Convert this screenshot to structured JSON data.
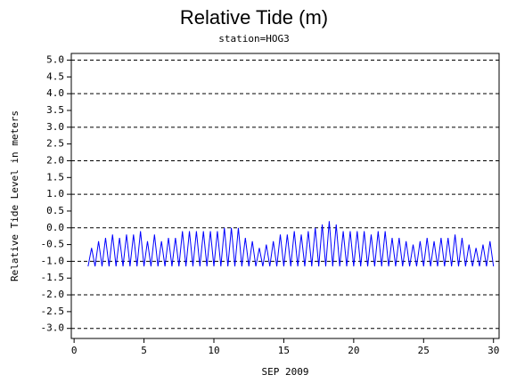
{
  "chart_data": {
    "type": "line",
    "title": "Relative Tide (m)",
    "subtitle": "station=HOG3",
    "xlabel": "SEP 2009",
    "ylabel": "Relative Tide Level in meters",
    "xlim": [
      -0.2,
      30.4
    ],
    "ylim": [
      -3.3,
      5.2
    ],
    "xticks": [
      0,
      5,
      10,
      15,
      20,
      25,
      30
    ],
    "yticks": [
      {
        "value": 5,
        "label": "5.0"
      },
      {
        "value": 4.5,
        "label": "4.5"
      },
      {
        "value": 4,
        "label": "4.0"
      },
      {
        "value": 3.5,
        "label": "3.5"
      },
      {
        "value": 3,
        "label": "3.0"
      },
      {
        "value": 2.5,
        "label": "2.5"
      },
      {
        "value": 2,
        "label": "2.0"
      },
      {
        "value": 1.5,
        "label": "1.5"
      },
      {
        "value": 1,
        "label": "1.0"
      },
      {
        "value": 0.5,
        "label": "0.5"
      },
      {
        "value": 0,
        "label": "0.0"
      },
      {
        "value": -0.5,
        "label": "-0.5"
      },
      {
        "value": -1,
        "label": "-1.0"
      },
      {
        "value": -1.5,
        "label": "-1.5"
      },
      {
        "value": -2,
        "label": "-2.0"
      },
      {
        "value": -2.5,
        "label": "-2.5"
      },
      {
        "value": -3,
        "label": "-3.0"
      }
    ],
    "grid": true,
    "x": [
      1,
      1.25,
      1.5,
      1.75,
      2,
      2.25,
      2.5,
      2.75,
      3,
      3.25,
      3.5,
      3.75,
      4,
      4.25,
      4.5,
      4.75,
      5,
      5.25,
      5.5,
      5.75,
      6,
      6.25,
      6.5,
      6.75,
      7,
      7.25,
      7.5,
      7.75,
      8,
      8.25,
      8.5,
      8.75,
      9,
      9.25,
      9.5,
      9.75,
      10,
      10.25,
      10.5,
      10.75,
      11,
      11.25,
      11.5,
      11.75,
      12,
      12.25,
      12.5,
      12.75,
      13,
      13.25,
      13.5,
      13.75,
      14,
      14.25,
      14.5,
      14.75,
      15,
      15.25,
      15.5,
      15.75,
      16,
      16.25,
      16.5,
      16.75,
      17,
      17.25,
      17.5,
      17.75,
      18,
      18.25,
      18.5,
      18.75,
      19,
      19.25,
      19.5,
      19.75,
      20,
      20.25,
      20.5,
      20.75,
      21,
      21.25,
      21.5,
      21.75,
      22,
      22.25,
      22.5,
      22.75,
      23,
      23.25,
      23.5,
      23.75,
      24,
      24.25,
      24.5,
      24.75,
      25,
      25.25,
      25.5,
      25.75,
      26,
      26.25,
      26.5,
      26.75,
      27,
      27.25,
      27.5,
      27.75,
      28,
      28.25,
      28.5,
      28.75,
      29,
      29.25,
      29.5,
      29.75,
      30
    ],
    "series": [
      {
        "name": "tide",
        "color": "#0000ff",
        "values": [
          -1.15,
          -0.6,
          -1.15,
          -0.4,
          -1.15,
          -0.3,
          -1.15,
          -0.2,
          -1.15,
          -0.3,
          -1.15,
          -0.2,
          -1.15,
          -0.2,
          -1.15,
          -0.1,
          -1.15,
          -0.4,
          -1.15,
          -0.2,
          -1.15,
          -0.4,
          -1.15,
          -0.3,
          -1.15,
          -0.3,
          -1.15,
          -0.1,
          -1.15,
          -0.1,
          -1.15,
          -0.1,
          -1.15,
          -0.1,
          -1.15,
          -0.1,
          -1.15,
          -0.1,
          -1.15,
          0,
          -1.15,
          0,
          -1.15,
          0,
          -1.15,
          -0.3,
          -1.15,
          -0.4,
          -1.15,
          -0.6,
          -1.15,
          -0.5,
          -1.15,
          -0.4,
          -1.15,
          -0.2,
          -1.15,
          -0.2,
          -1.15,
          -0.1,
          -1.15,
          -0.2,
          -1.15,
          -0.1,
          -1.15,
          0,
          -1.15,
          0.1,
          -1.15,
          0.2,
          -1.15,
          0.1,
          -1.15,
          -0.1,
          -1.15,
          -0.1,
          -1.15,
          -0.1,
          -1.15,
          -0.1,
          -1.15,
          -0.2,
          -1.15,
          -0.1,
          -1.15,
          -0.1,
          -1.15,
          -0.3,
          -1.15,
          -0.3,
          -1.15,
          -0.4,
          -1.15,
          -0.5,
          -1.15,
          -0.4,
          -1.15,
          -0.3,
          -1.15,
          -0.4,
          -1.15,
          -0.3,
          -1.15,
          -0.3,
          -1.15,
          -0.2,
          -1.15,
          -0.3,
          -1.15,
          -0.5,
          -1.15,
          -0.6,
          -1.15,
          -0.5,
          -1.15,
          -0.4,
          -1.15
        ]
      }
    ]
  }
}
